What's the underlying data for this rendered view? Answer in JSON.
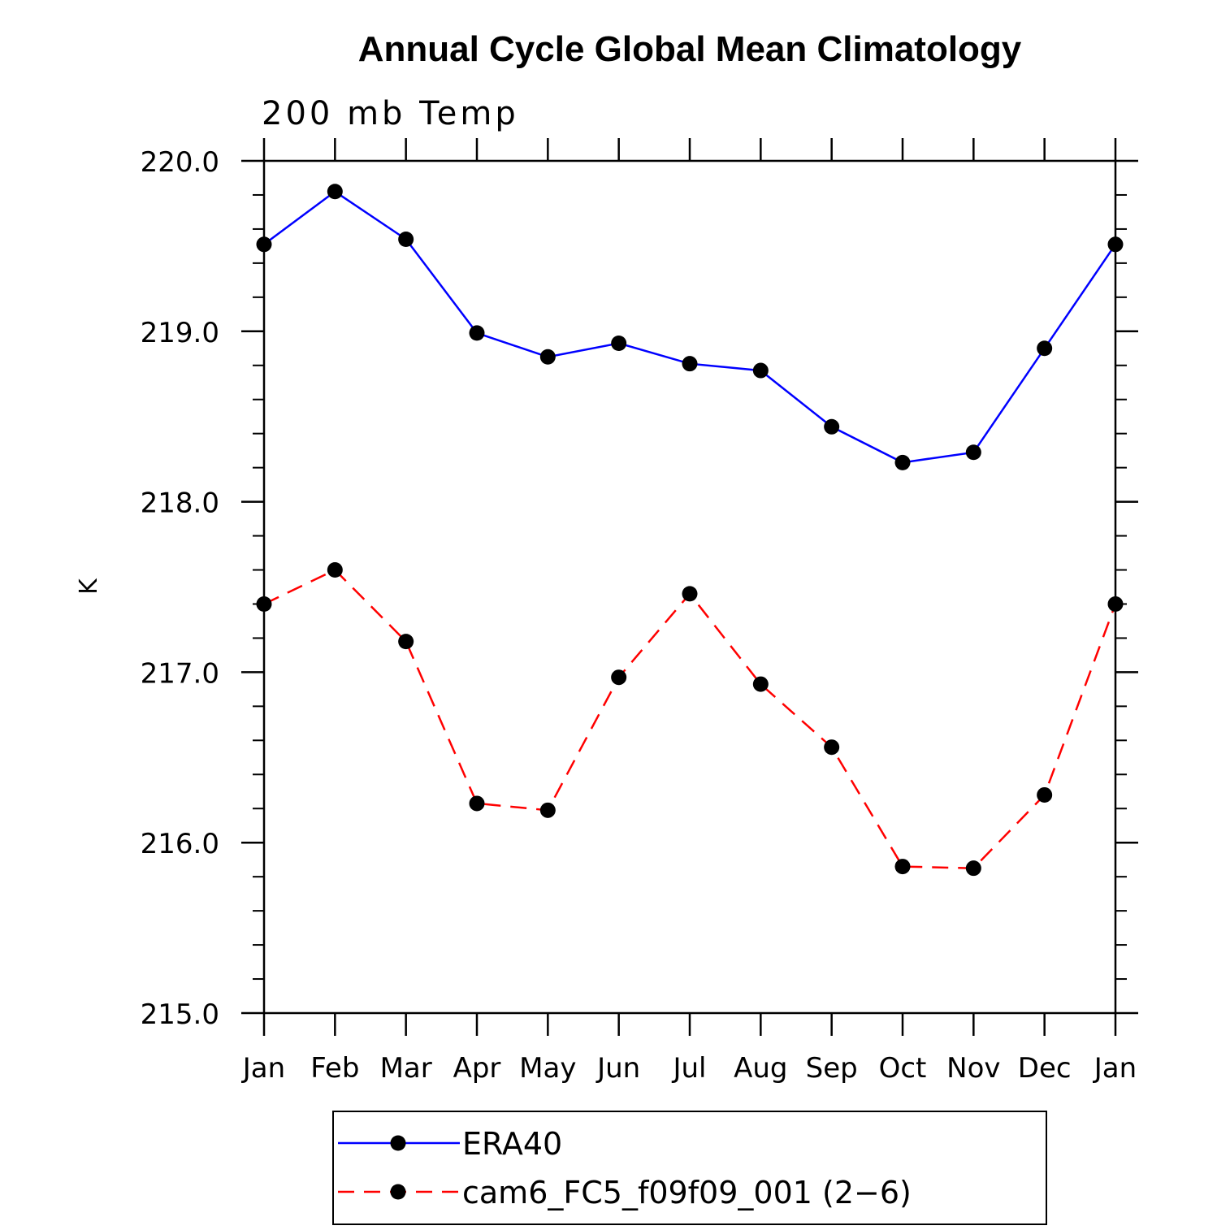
{
  "chart_data": {
    "type": "line",
    "title": "Annual Cycle Global Mean Climatology",
    "subtitle": "200 mb Temp",
    "xlabel": "",
    "ylabel": "K",
    "categories": [
      "Jan",
      "Feb",
      "Mar",
      "Apr",
      "May",
      "Jun",
      "Jul",
      "Aug",
      "Sep",
      "Oct",
      "Nov",
      "Dec",
      "Jan"
    ],
    "ylim": [
      215.0,
      220.0
    ],
    "yticks": [
      "215.0",
      "216.0",
      "217.0",
      "218.0",
      "219.0",
      "220.0"
    ],
    "grid": false,
    "legend_position": "bottom",
    "series": [
      {
        "name": "ERA40",
        "color": "#0000ff",
        "line_style": "solid",
        "values": [
          219.51,
          219.82,
          219.54,
          218.99,
          218.85,
          218.93,
          218.81,
          218.77,
          218.44,
          218.23,
          218.29,
          218.9,
          219.51
        ]
      },
      {
        "name": "cam6_FC5_f09f09_001 (2−6)",
        "color": "#ff0000",
        "line_style": "dashed",
        "values": [
          217.4,
          217.6,
          217.18,
          216.23,
          216.19,
          216.97,
          217.46,
          216.93,
          216.56,
          215.86,
          215.85,
          216.28,
          217.4
        ]
      }
    ]
  }
}
